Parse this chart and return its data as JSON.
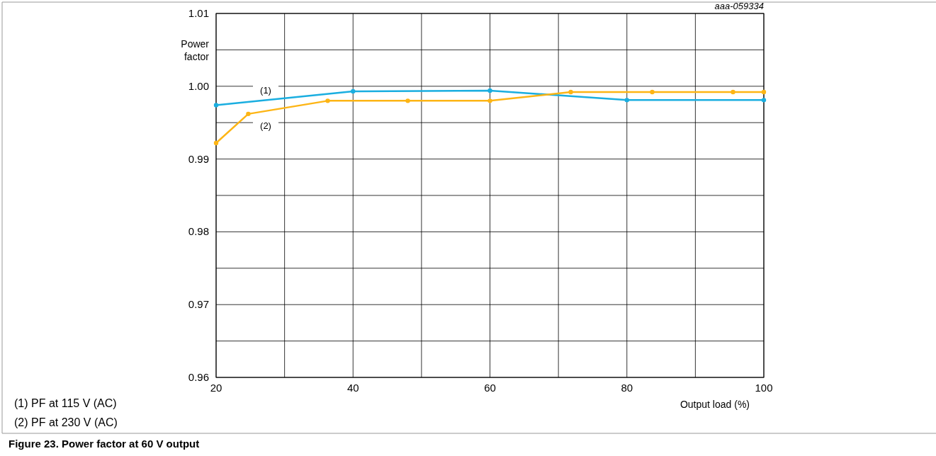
{
  "chart_data": {
    "type": "line",
    "title": "Figure 23.  Power factor at 60 V output",
    "subtitle": "aaa-059334",
    "xlabel": "Output load (%)",
    "ylabel": "Power factor",
    "annotations": [
      "(1) PF at 115 V (AC)",
      "(2) PF at 230 V (AC)"
    ],
    "series": [
      {
        "name": "(1)",
        "color": "#1aaee0",
        "x": [
          20,
          40,
          60,
          80,
          100
        ],
        "values": [
          0.9974,
          0.9993,
          0.9994,
          0.9981,
          0.9981
        ]
      },
      {
        "name": "(2)",
        "color": "#fdb515",
        "x": [
          20,
          24.7,
          36.3,
          48,
          60,
          71.8,
          83.7,
          95.5,
          100
        ],
        "values": [
          0.9922,
          0.9962,
          0.998,
          0.998,
          0.998,
          0.9992,
          0.9992,
          0.9992,
          0.9992
        ]
      }
    ],
    "xlim": [
      20,
      100
    ],
    "xticks": [
      20,
      {
        "value": 30,
        "label": null
      },
      40,
      {
        "value": 50,
        "label": null
      },
      60,
      {
        "value": 70,
        "label": null
      },
      80,
      {
        "value": 90,
        "label": null
      },
      100
    ],
    "ylim": [
      0.96,
      1.01
    ],
    "yticks": [
      {
        "value": 0.96,
        "label": "0.96"
      },
      {
        "value": 0.965,
        "label": null
      },
      {
        "value": 0.97,
        "label": "0.97"
      },
      {
        "value": 0.975,
        "label": null
      },
      {
        "value": 0.98,
        "label": "0.98"
      },
      {
        "value": 0.985,
        "label": null
      },
      {
        "value": 0.99,
        "label": "0.99"
      },
      {
        "value": 0.995,
        "label": null
      },
      {
        "value": 1.0,
        "label": "1.00"
      },
      {
        "value": 1.005,
        "label": null
      },
      {
        "value": 1.01,
        "label": "1.01"
      }
    ],
    "grid": true,
    "marker": "circle",
    "line_style": "solid"
  }
}
